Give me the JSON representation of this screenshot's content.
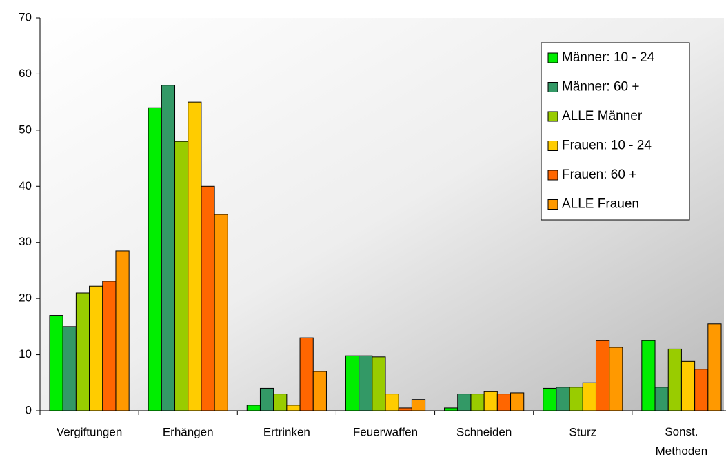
{
  "chart_data": {
    "type": "bar",
    "categories": [
      "Vergiftungen",
      "Erhängen",
      "Ertrinken",
      "Feuerwaffen",
      "Schneiden",
      "Sturz",
      "Sonst. Methoden"
    ],
    "series": [
      {
        "name": "Männer: 10 - 24",
        "color": "#00ee00",
        "values": [
          17,
          54,
          1,
          9.8,
          0.5,
          4,
          12.5
        ]
      },
      {
        "name": "Männer: 60 +",
        "color": "#339966",
        "values": [
          15,
          58,
          4,
          9.8,
          3,
          4.2,
          4.2
        ]
      },
      {
        "name": "ALLE Männer",
        "color": "#99cc00",
        "values": [
          21,
          48,
          3,
          9.6,
          3,
          4.2,
          11
        ]
      },
      {
        "name": "Frauen: 10 - 24",
        "color": "#ffcc00",
        "values": [
          22.2,
          55,
          1,
          3,
          3.4,
          5,
          8.8
        ]
      },
      {
        "name": "Frauen: 60 +",
        "color": "#ff6600",
        "values": [
          23.1,
          40,
          13,
          0.5,
          3,
          12.5,
          7.4
        ]
      },
      {
        "name": "ALLE Frauen",
        "color": "#ff9900",
        "values": [
          28.5,
          35,
          7,
          2,
          3.2,
          11.3,
          15.5
        ]
      }
    ],
    "ylim": [
      0,
      70
    ],
    "yticks": [
      0,
      10,
      20,
      30,
      40,
      50,
      60,
      70
    ],
    "legend": "upper right"
  }
}
